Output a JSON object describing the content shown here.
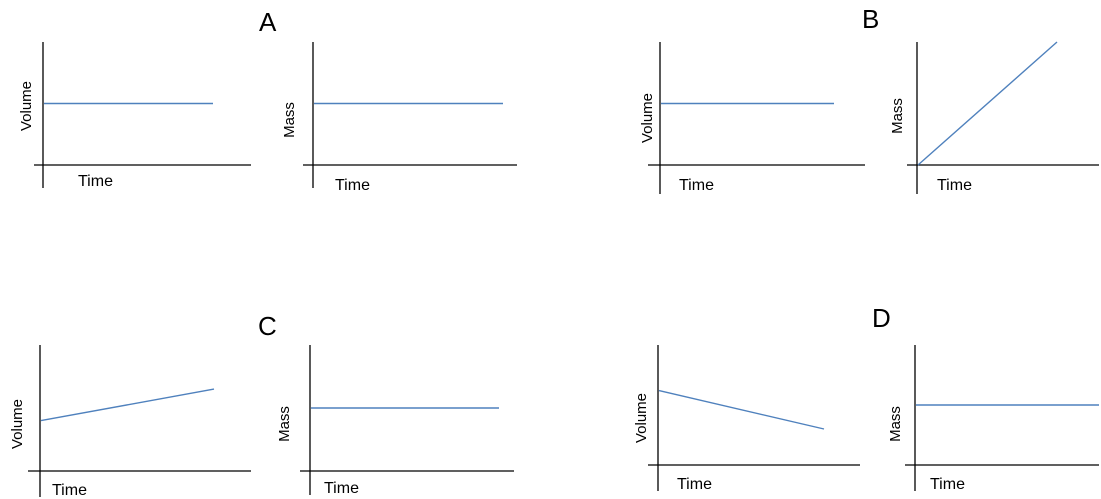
{
  "line_color": "#4F81BD",
  "axis_color": "#000000",
  "groups": [
    {
      "letter": "A"
    },
    {
      "letter": "B"
    },
    {
      "letter": "C"
    },
    {
      "letter": "D"
    }
  ],
  "chart_data": [
    {
      "type": "line",
      "group": "A",
      "panel": "left",
      "xlabel": "Time",
      "ylabel": "Volume",
      "x": [
        0,
        1
      ],
      "y": [
        0.5,
        0.5
      ],
      "ylim": [
        0,
        1
      ],
      "grid": false
    },
    {
      "type": "line",
      "group": "A",
      "panel": "right",
      "xlabel": "Time",
      "ylabel": "Mass",
      "x": [
        0,
        1
      ],
      "y": [
        0.5,
        0.5
      ],
      "ylim": [
        0,
        1
      ],
      "grid": false
    },
    {
      "type": "line",
      "group": "B",
      "panel": "left",
      "xlabel": "Time",
      "ylabel": "Volume",
      "x": [
        0,
        1
      ],
      "y": [
        0.5,
        0.5
      ],
      "ylim": [
        0,
        1
      ],
      "grid": false
    },
    {
      "type": "line",
      "group": "B",
      "panel": "right",
      "xlabel": "Time",
      "ylabel": "Mass",
      "x": [
        0,
        1
      ],
      "y": [
        0,
        1
      ],
      "ylim": [
        0,
        1
      ],
      "grid": false
    },
    {
      "type": "line",
      "group": "C",
      "panel": "left",
      "xlabel": "Time",
      "ylabel": "Volume",
      "x": [
        0,
        1
      ],
      "y": [
        0.4,
        0.65
      ],
      "ylim": [
        0,
        1
      ],
      "grid": false
    },
    {
      "type": "line",
      "group": "C",
      "panel": "right",
      "xlabel": "Time",
      "ylabel": "Mass",
      "x": [
        0,
        1
      ],
      "y": [
        0.5,
        0.5
      ],
      "ylim": [
        0,
        1
      ],
      "grid": false
    },
    {
      "type": "line",
      "group": "D",
      "panel": "left",
      "xlabel": "Time",
      "ylabel": "Volume",
      "x": [
        0,
        1
      ],
      "y": [
        0.62,
        0.3
      ],
      "ylim": [
        0,
        1
      ],
      "grid": false
    },
    {
      "type": "line",
      "group": "D",
      "panel": "right",
      "xlabel": "Time",
      "ylabel": "Mass",
      "x": [
        0,
        1
      ],
      "y": [
        0.5,
        0.5
      ],
      "ylim": [
        0,
        1
      ],
      "grid": false
    }
  ]
}
